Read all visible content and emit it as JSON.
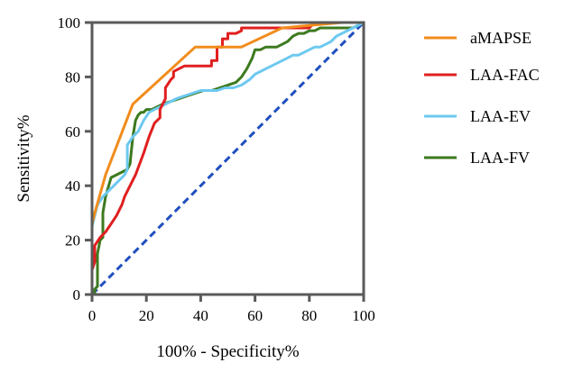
{
  "chart_data": {
    "type": "line",
    "title": "",
    "xlabel": "100% - Specificity%",
    "ylabel": "Sensitivity%",
    "xlim": [
      0,
      100
    ],
    "ylim": [
      0,
      100
    ],
    "xticks": [
      0,
      20,
      40,
      60,
      80,
      100
    ],
    "yticks": [
      0,
      20,
      40,
      60,
      80,
      100
    ],
    "grid": false,
    "legend_position": "right",
    "series": [
      {
        "name": "aMAPSE",
        "color": "#f28c1c",
        "x": [
          0,
          0,
          1,
          5,
          15,
          38,
          55,
          70,
          92,
          100
        ],
        "y": [
          0,
          26,
          30,
          44,
          70,
          91,
          91,
          98,
          100,
          100
        ]
      },
      {
        "name": "LAA-FAC",
        "color": "#e01f1f",
        "x": [
          0,
          0,
          1,
          1,
          3,
          5,
          7,
          9,
          11,
          12,
          14,
          16,
          19,
          21,
          23,
          25,
          25,
          26,
          27,
          27,
          29,
          30,
          30,
          32,
          34,
          36,
          38,
          40,
          42,
          44,
          44,
          46,
          46,
          48,
          48,
          50,
          50,
          53,
          55,
          55,
          58,
          60,
          62,
          64,
          66,
          68,
          70,
          72,
          74,
          76,
          78,
          80,
          82,
          84,
          86,
          88,
          90,
          90,
          92,
          94,
          96,
          98,
          100
        ],
        "y": [
          0,
          9,
          12,
          18,
          21,
          23,
          26,
          29,
          33,
          36,
          40,
          44,
          52,
          58,
          63,
          65,
          68,
          70,
          72,
          76,
          79,
          80,
          82,
          83,
          84,
          84,
          84,
          84,
          84,
          84,
          86,
          86,
          91,
          91,
          94,
          94,
          96,
          96,
          97,
          98,
          98,
          98,
          98,
          98,
          98,
          98,
          98,
          98,
          98,
          98,
          98,
          98,
          100,
          100,
          100,
          100,
          100,
          100,
          100,
          100,
          100,
          100,
          100
        ]
      },
      {
        "name": "LAA-EV",
        "color": "#6ec9f0",
        "x": [
          0,
          0,
          1,
          2,
          4,
          6,
          8,
          10,
          12,
          13,
          13,
          15,
          16,
          17,
          18,
          19,
          21,
          23,
          25,
          27,
          29,
          31,
          34,
          37,
          40,
          43,
          46,
          49,
          52,
          55,
          58,
          60,
          62,
          64,
          66,
          68,
          70,
          72,
          74,
          76,
          78,
          80,
          82,
          84,
          86,
          88,
          90,
          92,
          94,
          96,
          98,
          100
        ],
        "y": [
          0,
          25,
          29,
          33,
          36,
          38,
          40,
          42,
          44,
          46,
          55,
          58,
          59,
          60,
          62,
          64,
          67,
          68,
          69,
          70,
          71,
          72,
          73,
          74,
          75,
          75,
          75,
          76,
          76,
          77,
          79,
          81,
          82,
          83,
          84,
          85,
          86,
          87,
          88,
          88,
          89,
          90,
          91,
          91,
          92,
          93,
          95,
          96,
          97,
          98,
          99,
          100
        ]
      },
      {
        "name": "LAA-FV",
        "color": "#3c7a1e",
        "x": [
          0,
          1,
          1,
          2,
          2,
          3,
          4,
          4,
          5,
          7,
          9,
          11,
          13,
          14,
          15,
          16,
          17,
          18,
          19,
          20,
          22,
          24,
          26,
          29,
          32,
          35,
          38,
          41,
          44,
          47,
          50,
          53,
          55,
          57,
          59,
          60,
          62,
          64,
          66,
          68,
          70,
          72,
          74,
          76,
          78,
          80,
          82,
          84,
          86,
          88,
          90,
          92,
          94,
          96,
          98,
          100
        ],
        "y": [
          0,
          0,
          2,
          3,
          15,
          20,
          21,
          30,
          36,
          43,
          44,
          45,
          46,
          48,
          58,
          64,
          66,
          67,
          67,
          68,
          68,
          69,
          70,
          71,
          72,
          73,
          74,
          75,
          75,
          76,
          77,
          78,
          80,
          83,
          87,
          90,
          90,
          91,
          91,
          91,
          92,
          93,
          95,
          96,
          96,
          97,
          97,
          98,
          98,
          98,
          98,
          98,
          98,
          98,
          99,
          100
        ]
      },
      {
        "name": "Reference line",
        "color": "#1f4fbf",
        "style": "dashed",
        "show_in_legend": false,
        "x": [
          0,
          100
        ],
        "y": [
          0,
          100
        ]
      }
    ]
  }
}
